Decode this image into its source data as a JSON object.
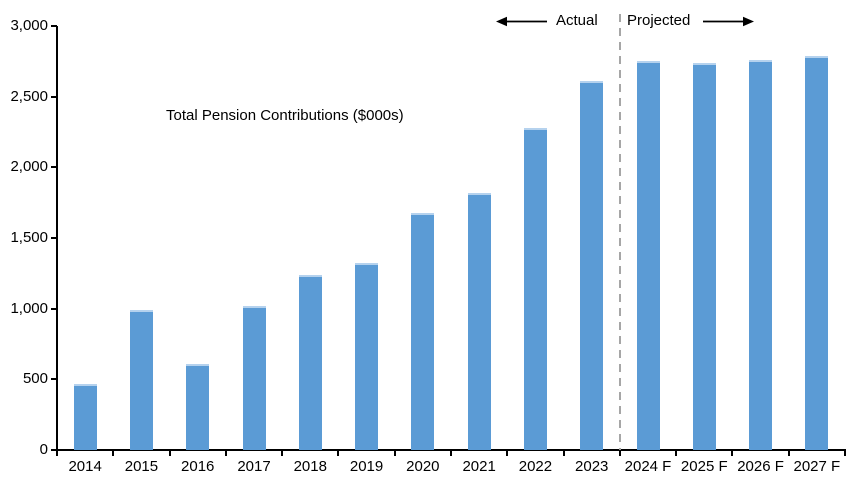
{
  "legend": {
    "label": "Total Pension Contributions ($000s)",
    "marker_color": "#5b9bd5"
  },
  "annotations": {
    "actual_label": "Actual",
    "projected_label": "Projected"
  },
  "colors": {
    "bar_fill": "#5b9bd5",
    "bar_top_edge": "#b5d2ee",
    "axis": "#000000",
    "divider": "#a6a6a6",
    "text": "#000000",
    "background": "#ffffff"
  },
  "chart_data": {
    "type": "bar",
    "categories": [
      "2014",
      "2015",
      "2016",
      "2017",
      "2018",
      "2019",
      "2020",
      "2021",
      "2022",
      "2023",
      "2024 F",
      "2025 F",
      "2026 F",
      "2027 F"
    ],
    "values": [
      470,
      990,
      610,
      1020,
      1240,
      1320,
      1680,
      1815,
      2275,
      2610,
      2750,
      2740,
      2760,
      2790
    ],
    "series_name": "Total Pension Contributions ($000s)",
    "title": "",
    "xlabel": "",
    "ylabel": "",
    "ylim": [
      0,
      3000
    ],
    "yticks": [
      0,
      500,
      1000,
      1500,
      2000,
      2500,
      3000
    ],
    "ytick_labels": [
      "0",
      "500",
      "1,000",
      "1,500",
      "2,000",
      "2,500",
      "3,000"
    ],
    "grid": false,
    "legend_position": "upper-left-inside",
    "bar_color": "#5b9bd5",
    "divider_after_index": 9,
    "actual_span": "2014-2023",
    "projected_span": "2024 F-2027 F"
  }
}
